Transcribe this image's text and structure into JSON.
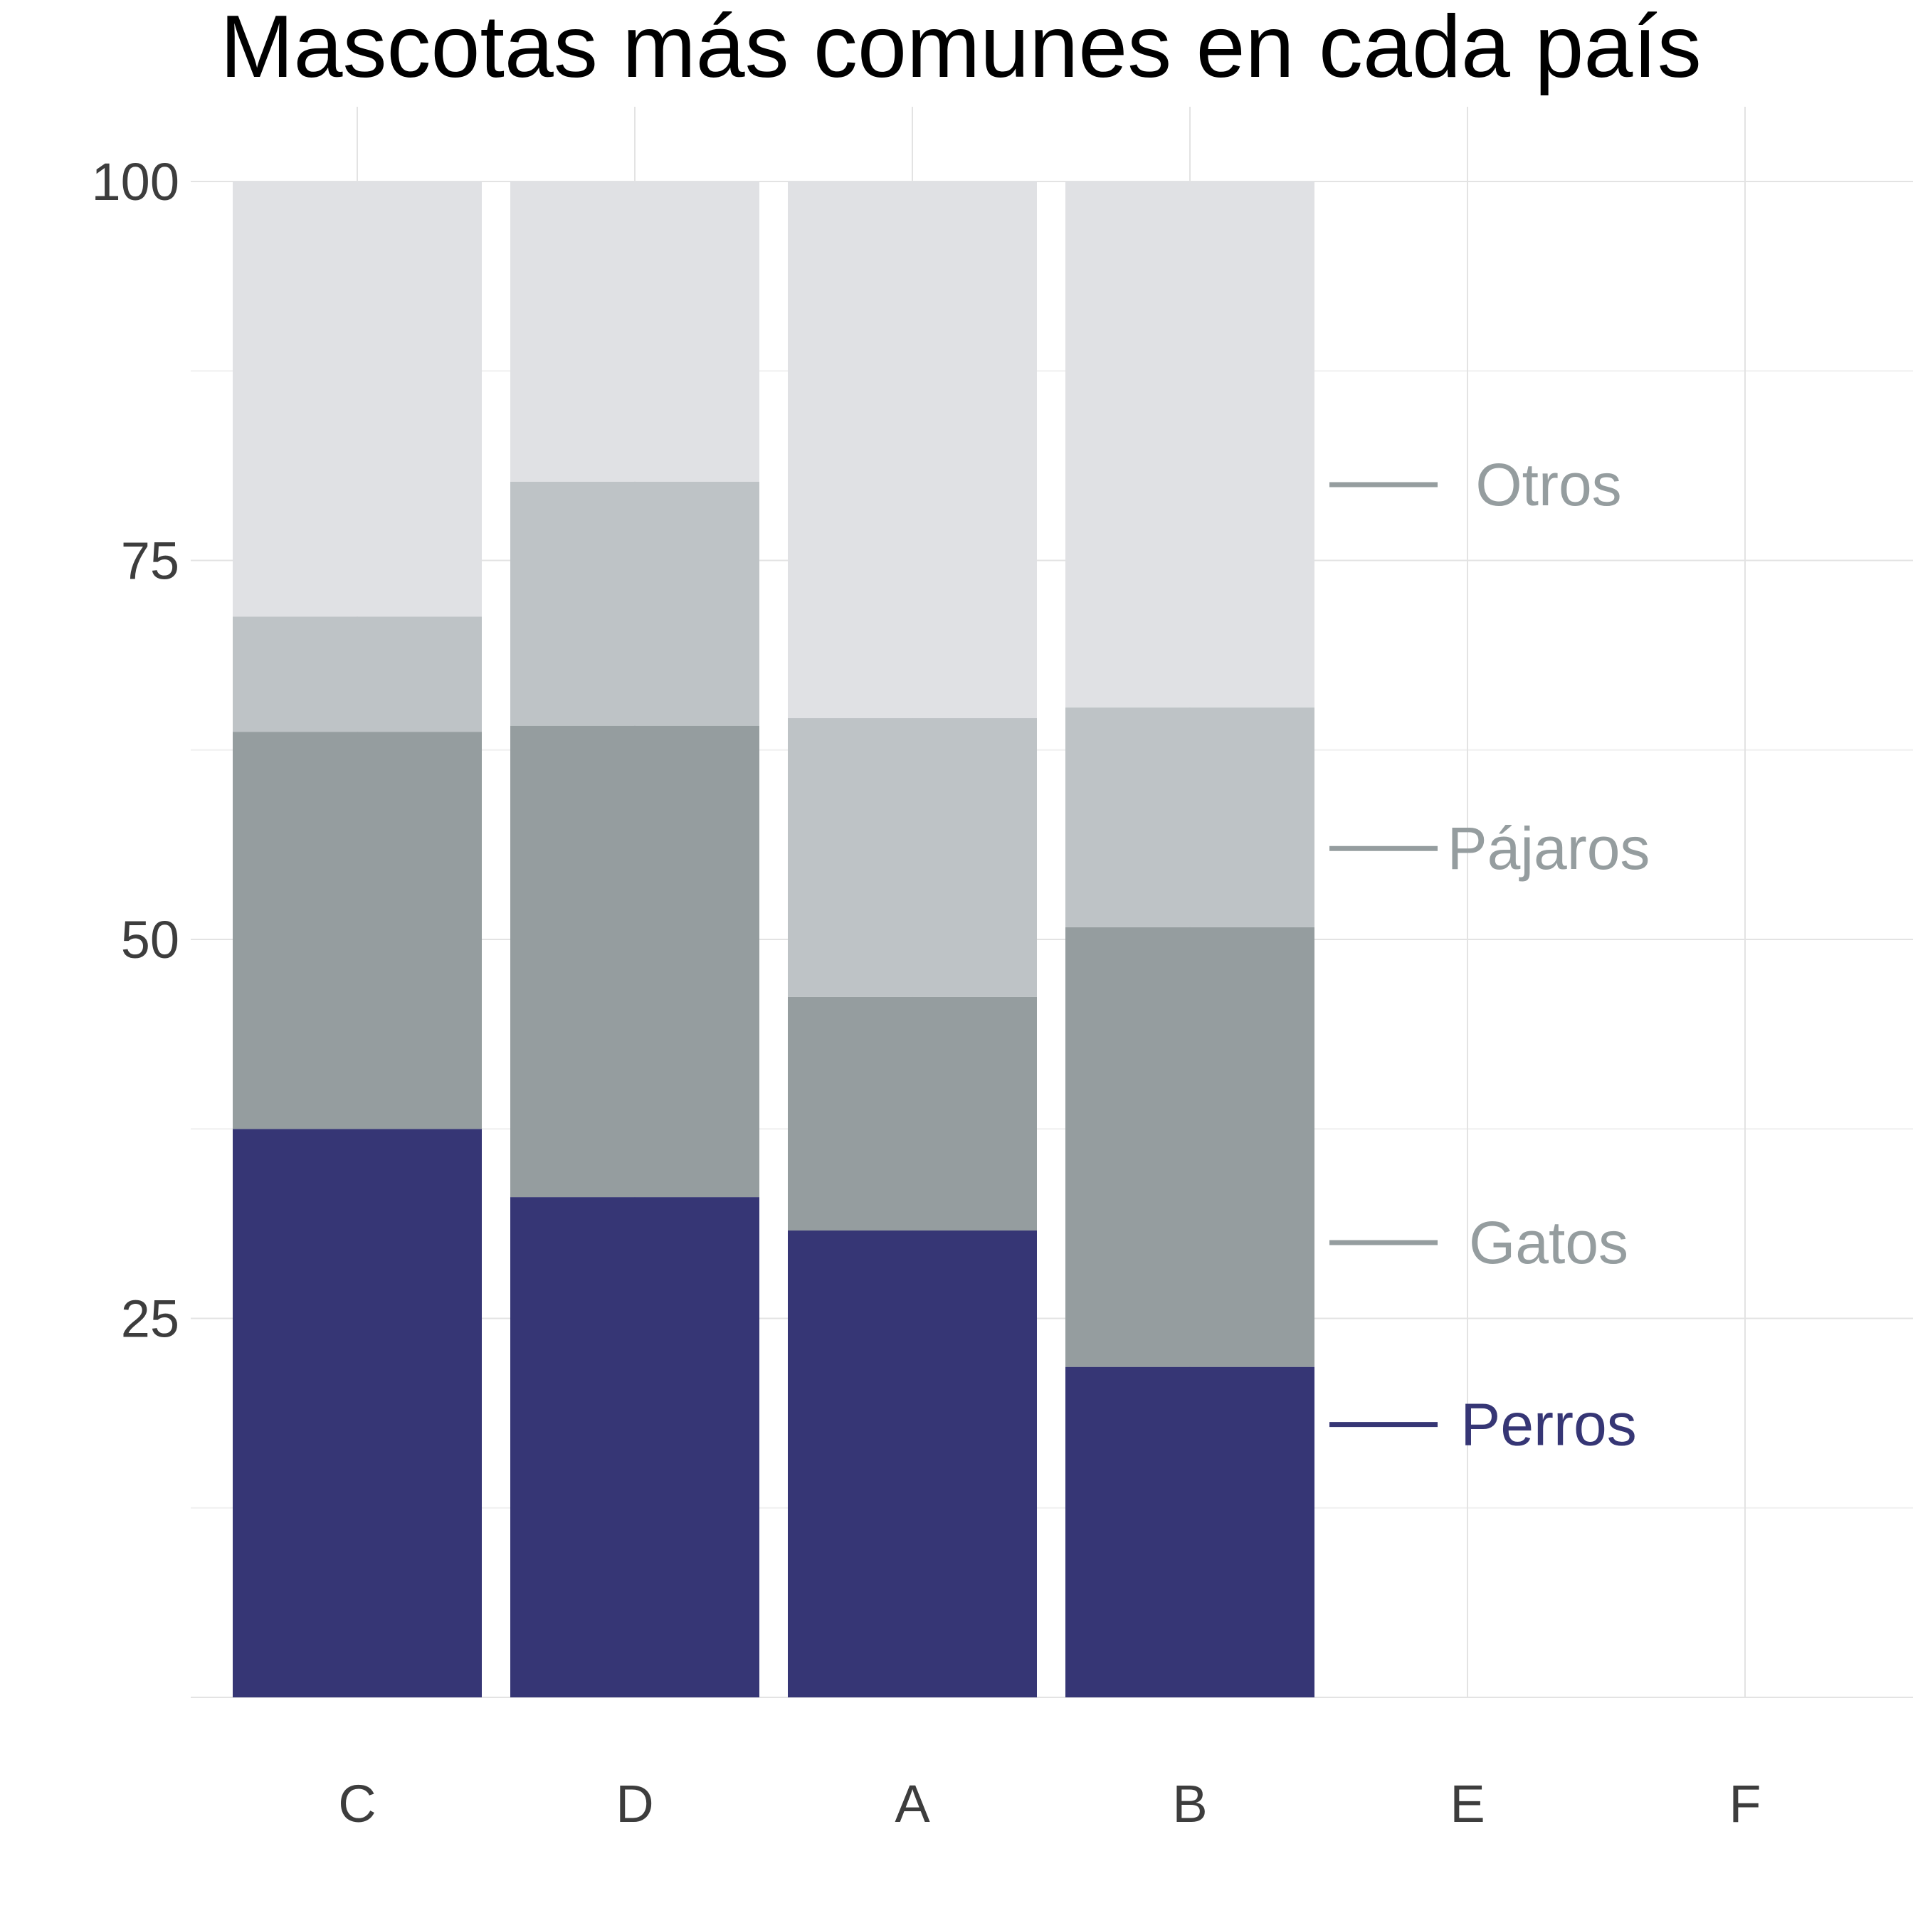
{
  "chart_data": {
    "type": "bar",
    "stacked": true,
    "title": "Mascotas más comunes en cada país",
    "xlabel": "",
    "ylabel": "",
    "categories": [
      "C",
      "D",
      "A",
      "B",
      "E",
      "F"
    ],
    "ylim": [
      0,
      100
    ],
    "yticks": [
      25,
      50,
      75,
      100
    ],
    "grid": true,
    "series": [
      {
        "name": "Perros",
        "color": "#363675",
        "values": [
          37.5,
          33.0,
          30.8,
          21.8,
          null,
          null
        ]
      },
      {
        "name": "Gatos",
        "color": "#959d9f",
        "values": [
          26.2,
          31.1,
          15.4,
          29.0,
          null,
          null
        ]
      },
      {
        "name": "Pájaros",
        "color": "#bec3c6",
        "values": [
          7.6,
          16.1,
          18.4,
          14.5,
          null,
          null
        ]
      },
      {
        "name": "Otros",
        "color": "#e0e1e4",
        "values": [
          28.7,
          19.8,
          35.4,
          34.7,
          null,
          null
        ]
      }
    ],
    "series_labels": [
      {
        "name": "Perros",
        "y": 18,
        "color": "#363675"
      },
      {
        "name": "Gatos",
        "y": 30,
        "color": "#959d9f"
      },
      {
        "name": "Pájaros",
        "y": 56,
        "color": "#959d9f"
      },
      {
        "name": "Otros",
        "y": 80,
        "color": "#959d9f"
      }
    ]
  }
}
